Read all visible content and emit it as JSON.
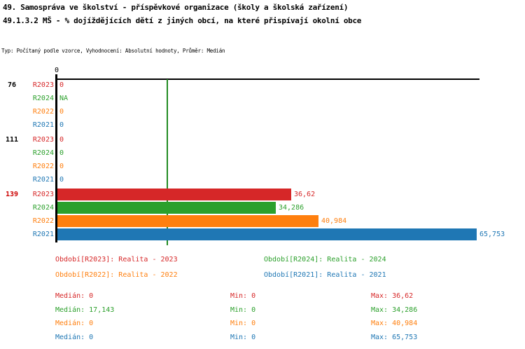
{
  "header": {
    "title_line1": "49. Samospráva ve školství - příspěvkové organizace (školy a školská zařízení)",
    "title_line2": "49.1.3.2 MŠ - % dojíždějících dětí z jiných obcí, na které přispívají okolní obce",
    "subtitle": "Typ: Počítaný podle vzorce, Vyhodnocení: Absolutní hodnoty, Průměr: Medián"
  },
  "colors": {
    "series_r2023": "#d62728",
    "series_r2024": "#2ca02c",
    "series_r2022": "#ff7f0e",
    "series_r2021": "#1f77b4",
    "median_line": "#228b22",
    "highlight_group_label": "#cc0000",
    "axis": "#000000"
  },
  "chart_data": {
    "type": "bar",
    "orientation": "horizontal",
    "axis_origin_label": "0",
    "xlim": [
      0,
      66.2
    ],
    "grid": false,
    "median_line_value": 17.143,
    "series_names": [
      "R2023",
      "R2024",
      "R2022",
      "R2021"
    ],
    "groups": [
      {
        "label": "76",
        "highlighted": false,
        "rows": [
          {
            "series": "R2023",
            "value": 0,
            "display": "0"
          },
          {
            "series": "R2024",
            "value": null,
            "display": "NA"
          },
          {
            "series": "R2022",
            "value": 0,
            "display": "0"
          },
          {
            "series": "R2021",
            "value": 0,
            "display": "0"
          }
        ]
      },
      {
        "label": "111",
        "highlighted": false,
        "rows": [
          {
            "series": "R2023",
            "value": 0,
            "display": "0"
          },
          {
            "series": "R2024",
            "value": 0,
            "display": "0"
          },
          {
            "series": "R2022",
            "value": 0,
            "display": "0"
          },
          {
            "series": "R2021",
            "value": 0,
            "display": "0"
          }
        ]
      },
      {
        "label": "139",
        "highlighted": true,
        "rows": [
          {
            "series": "R2023",
            "value": 36.62,
            "display": "36,62"
          },
          {
            "series": "R2024",
            "value": 34.286,
            "display": "34,286"
          },
          {
            "series": "R2022",
            "value": 40.984,
            "display": "40,984"
          },
          {
            "series": "R2021",
            "value": 65.753,
            "display": "65,753"
          }
        ]
      }
    ]
  },
  "legend": {
    "items": [
      {
        "series": "R2023",
        "label": "Období[R2023]: Realita - 2023"
      },
      {
        "series": "R2024",
        "label": "Období[R2024]: Realita - 2024"
      },
      {
        "series": "R2022",
        "label": "Období[R2022]: Realita - 2022"
      },
      {
        "series": "R2021",
        "label": "Období[R2021]: Realita - 2021"
      }
    ]
  },
  "stats": {
    "rows": [
      {
        "series": "R2023",
        "median": "Medián: 0",
        "min": "Min: 0",
        "max": "Max: 36,62"
      },
      {
        "series": "R2024",
        "median": "Medián: 17,143",
        "min": "Min: 0",
        "max": "Max: 34,286"
      },
      {
        "series": "R2022",
        "median": "Medián: 0",
        "min": "Min: 0",
        "max": "Max: 40,984"
      },
      {
        "series": "R2021",
        "median": "Medián: 0",
        "min": "Min: 0",
        "max": "Max: 65,753"
      }
    ]
  }
}
